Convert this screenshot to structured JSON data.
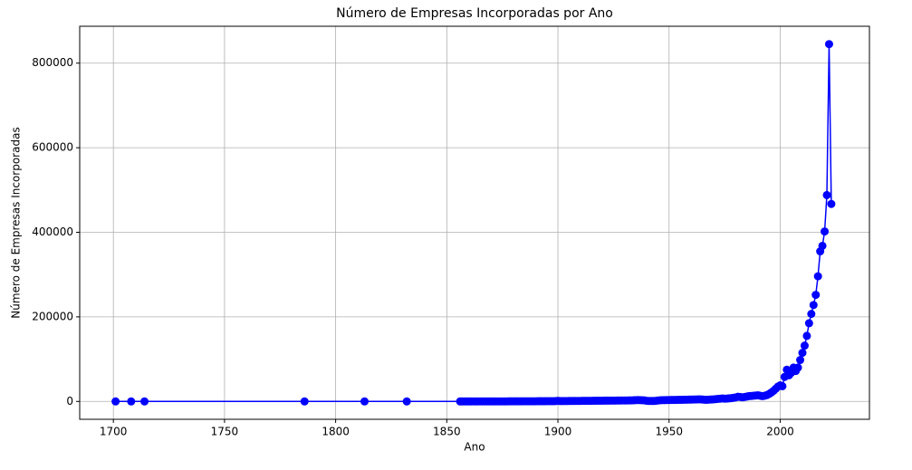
{
  "chart_data": {
    "type": "line",
    "title": "Número de Empresas Incorporadas por Ano",
    "x_label": "Ano",
    "y_label": "Número de Empresas Incorporadas",
    "x": [
      1701,
      1708,
      1714,
      1786,
      1813,
      1832,
      1856,
      1857,
      1858,
      1859,
      1860,
      1861,
      1862,
      1863,
      1864,
      1865,
      1866,
      1867,
      1868,
      1869,
      1870,
      1871,
      1872,
      1873,
      1874,
      1875,
      1876,
      1877,
      1878,
      1879,
      1880,
      1881,
      1882,
      1883,
      1884,
      1885,
      1886,
      1887,
      1888,
      1889,
      1890,
      1891,
      1892,
      1893,
      1894,
      1895,
      1896,
      1897,
      1898,
      1899,
      1900,
      1901,
      1902,
      1903,
      1904,
      1905,
      1906,
      1907,
      1908,
      1909,
      1910,
      1911,
      1912,
      1913,
      1914,
      1915,
      1916,
      1917,
      1918,
      1919,
      1920,
      1921,
      1922,
      1923,
      1924,
      1925,
      1926,
      1927,
      1928,
      1929,
      1930,
      1931,
      1932,
      1933,
      1934,
      1935,
      1936,
      1937,
      1938,
      1939,
      1940,
      1941,
      1942,
      1943,
      1944,
      1945,
      1946,
      1947,
      1948,
      1949,
      1950,
      1951,
      1952,
      1953,
      1954,
      1955,
      1956,
      1957,
      1958,
      1959,
      1960,
      1961,
      1962,
      1963,
      1964,
      1965,
      1966,
      1967,
      1968,
      1969,
      1970,
      1971,
      1972,
      1973,
      1974,
      1975,
      1976,
      1977,
      1978,
      1979,
      1980,
      1981,
      1982,
      1983,
      1984,
      1985,
      1986,
      1987,
      1988,
      1989,
      1990,
      1991,
      1992,
      1993,
      1994,
      1995,
      1996,
      1997,
      1998,
      1999,
      2000,
      2001,
      2002,
      2003,
      2004,
      2005,
      2006,
      2007,
      2008,
      2009,
      2010,
      2011,
      2012,
      2013,
      2014,
      2015,
      2016,
      2017,
      2018,
      2019,
      2020,
      2021,
      2022,
      2023
    ],
    "series": [
      {
        "name": "Empresas",
        "color": "#0000ff",
        "values": [
          1,
          1,
          1,
          1,
          1,
          1,
          5,
          12,
          20,
          18,
          25,
          30,
          40,
          35,
          50,
          60,
          70,
          80,
          90,
          85,
          110,
          120,
          130,
          125,
          150,
          160,
          170,
          180,
          200,
          210,
          230,
          250,
          270,
          300,
          320,
          340,
          360,
          380,
          400,
          420,
          450,
          480,
          500,
          520,
          550,
          580,
          600,
          650,
          700,
          750,
          1500,
          800,
          850,
          900,
          950,
          1000,
          1050,
          1100,
          1150,
          1200,
          1250,
          1300,
          1350,
          1400,
          1450,
          1500,
          1550,
          1600,
          1650,
          1700,
          1750,
          1800,
          1850,
          1900,
          1950,
          2000,
          2050,
          2100,
          2150,
          2200,
          2250,
          2300,
          2400,
          2500,
          2600,
          3000,
          3200,
          3100,
          2800,
          2500,
          1500,
          1200,
          1000,
          1100,
          1500,
          2200,
          2800,
          3000,
          3100,
          3200,
          3300,
          3400,
          3500,
          3600,
          3700,
          3800,
          3900,
          4000,
          4100,
          4200,
          4300,
          4500,
          4700,
          4900,
          5000,
          4500,
          4000,
          3800,
          4200,
          4500,
          5000,
          5500,
          6000,
          6500,
          7000,
          6500,
          6800,
          7200,
          7800,
          8500,
          9500,
          11000,
          10500,
          9800,
          10500,
          11500,
          12500,
          13000,
          13500,
          14000,
          14500,
          13500,
          12500,
          13500,
          15000,
          17500,
          21000,
          25000,
          30000,
          35000,
          38000,
          36000,
          58000,
          75000,
          62000,
          68000,
          80000,
          72000,
          80000,
          98000,
          115000,
          132000,
          155000,
          185000,
          207000,
          228000,
          252000,
          296000,
          355000,
          368000,
          402000,
          488000,
          845000,
          467000
        ]
      }
    ],
    "xlim": [
      1684.85,
      2040.15
    ],
    "ylim": [
      -42250,
      887250
    ],
    "xticks": [
      1700,
      1750,
      1800,
      1850,
      1900,
      1950,
      2000
    ],
    "yticks": [
      0,
      200000,
      400000,
      600000,
      800000
    ],
    "grid": true,
    "marker": "circle"
  }
}
